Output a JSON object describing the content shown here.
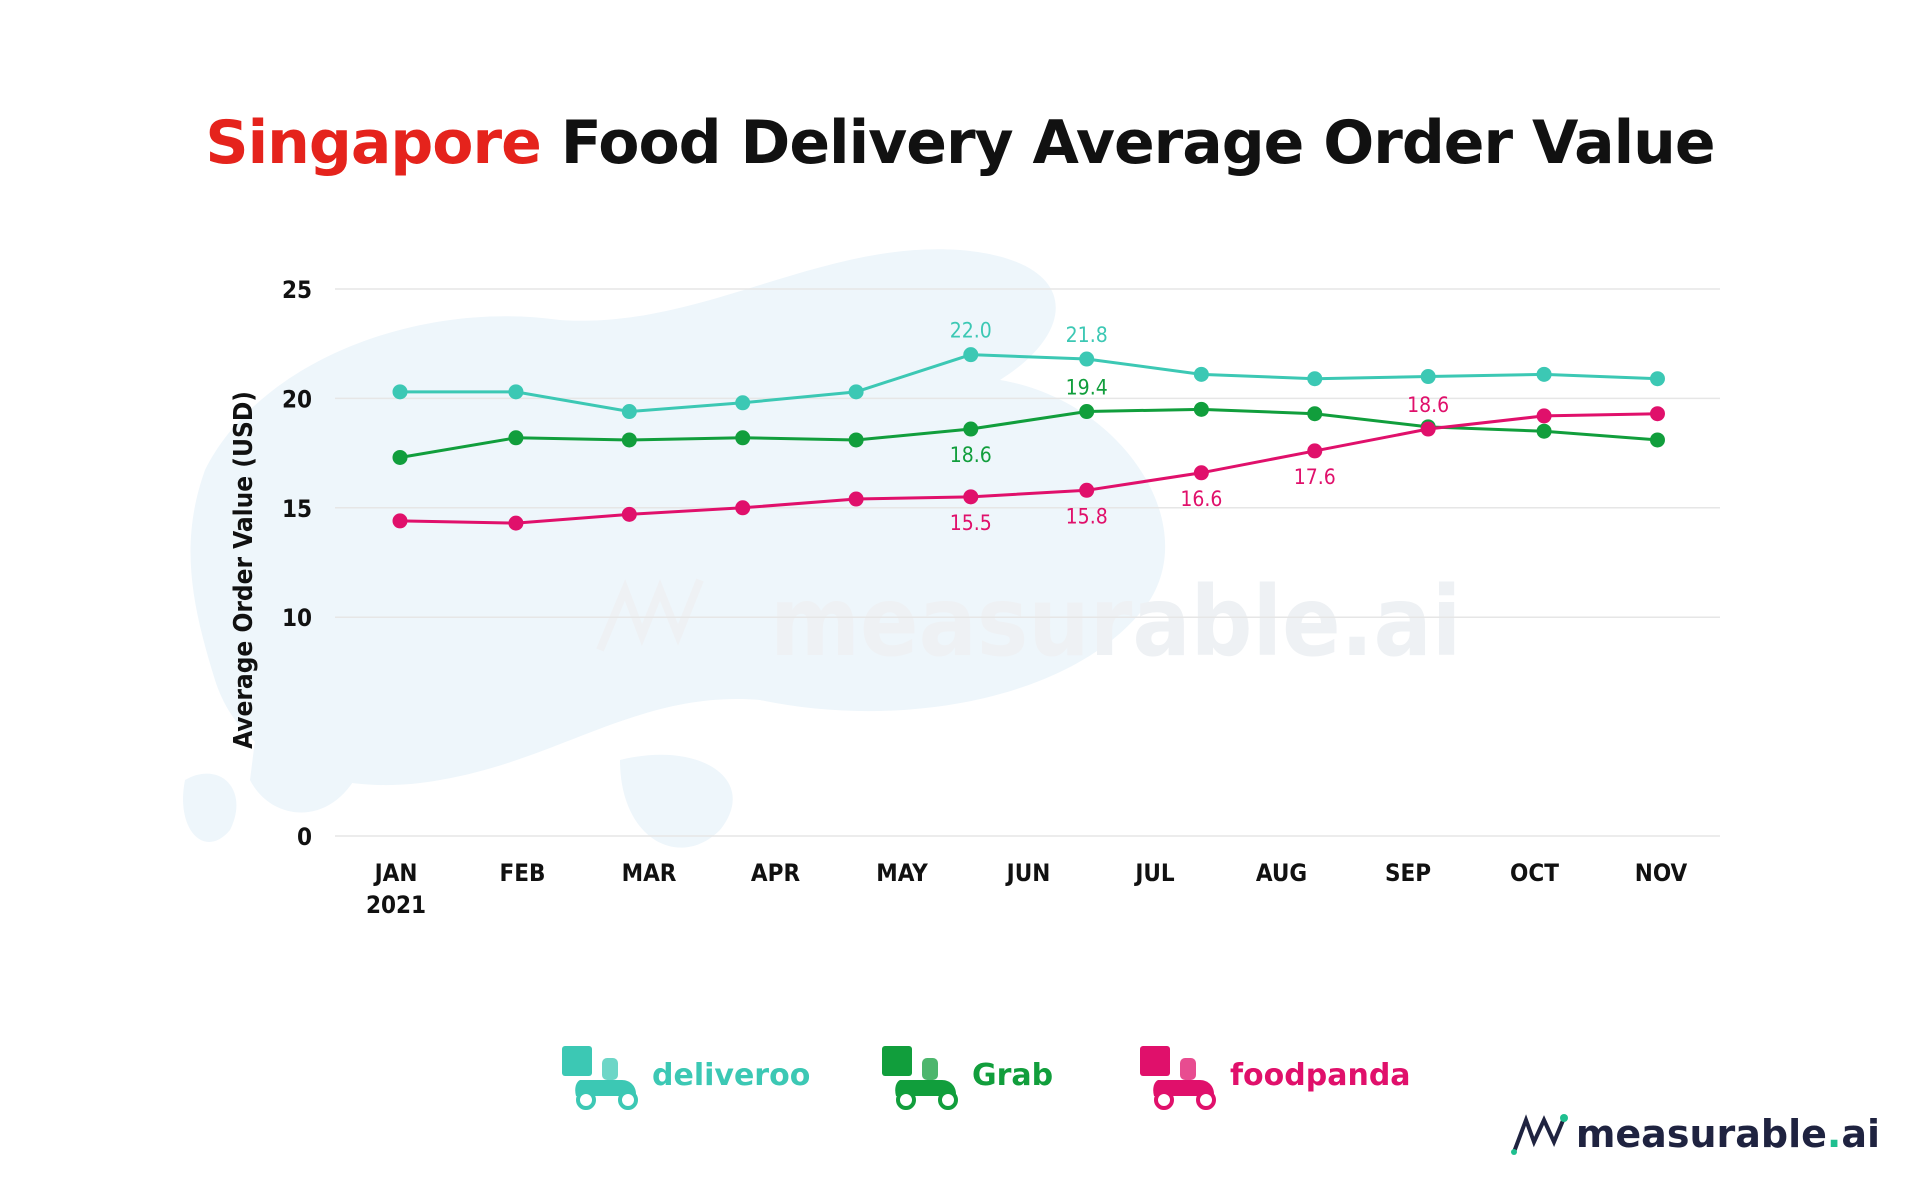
{
  "title": {
    "highlight": "Singapore",
    "rest": "Food Delivery Average Order Value"
  },
  "watermark": "measurable.ai",
  "brand": {
    "name": "measurable",
    "dot": ".",
    "suffix": "ai"
  },
  "colors": {
    "deliveroo": "#3cc8b4",
    "grab": "#119e3c",
    "foodpanda": "#e0106b",
    "title_highlight": "#e5231c",
    "grid": "#e6e6e6",
    "map": "#eef6fb"
  },
  "chart_data": {
    "type": "line",
    "ylabel": "Average Order Value (USD)",
    "ylim": [
      0,
      25
    ],
    "yticks": [
      0,
      10,
      15,
      20,
      25
    ],
    "categories": [
      "JAN",
      "FEB",
      "MAR",
      "APR",
      "MAY",
      "JUN",
      "JUL",
      "AUG",
      "SEP",
      "OCT",
      "NOV"
    ],
    "category_sublabels": [
      "2021",
      "",
      "",
      "",
      "",
      "",
      "",
      "",
      "",
      "",
      ""
    ],
    "grid": true,
    "legend_position": "bottom",
    "series": [
      {
        "name": "deliveroo",
        "color_key": "deliveroo",
        "x": [
          0,
          0.92,
          1.82,
          2.72,
          3.62,
          4.53,
          5.45,
          6.36,
          7.26,
          8.16,
          9.08,
          9.98
        ],
        "values": [
          20.3,
          20.3,
          19.4,
          19.8,
          20.3,
          22.0,
          21.8,
          21.1,
          20.9,
          21.0,
          21.1,
          20.9
        ],
        "labels": [
          {
            "index": 5,
            "text": "22.0",
            "position": "above"
          },
          {
            "index": 6,
            "text": "21.8",
            "position": "above"
          }
        ]
      },
      {
        "name": "Grab",
        "color_key": "grab",
        "x": [
          0,
          0.92,
          1.82,
          2.72,
          3.62,
          4.53,
          5.45,
          6.36,
          7.26,
          8.16,
          9.08,
          9.98
        ],
        "values": [
          17.3,
          18.2,
          18.1,
          18.2,
          18.1,
          18.6,
          19.4,
          19.5,
          19.3,
          18.7,
          18.5,
          18.1
        ],
        "labels": [
          {
            "index": 5,
            "text": "18.6",
            "position": "below"
          },
          {
            "index": 6,
            "text": "19.4",
            "position": "above"
          }
        ]
      },
      {
        "name": "foodpanda",
        "color_key": "foodpanda",
        "x": [
          0,
          0.92,
          1.82,
          2.72,
          3.62,
          4.53,
          5.45,
          6.36,
          7.26,
          8.16,
          9.08,
          9.98
        ],
        "values": [
          14.4,
          14.3,
          14.7,
          15.0,
          15.4,
          15.5,
          15.8,
          16.6,
          17.6,
          18.6,
          19.2,
          19.3
        ],
        "labels": [
          {
            "index": 5,
            "text": "15.5",
            "position": "below"
          },
          {
            "index": 6,
            "text": "15.8",
            "position": "below"
          },
          {
            "index": 7,
            "text": "16.6",
            "position": "below"
          },
          {
            "index": 8,
            "text": "17.6",
            "position": "below"
          },
          {
            "index": 9,
            "text": "18.6",
            "position": "above"
          }
        ]
      }
    ]
  },
  "legend": [
    {
      "name": "deliveroo",
      "color_key": "deliveroo",
      "icon": "deliveroo-scooter-icon"
    },
    {
      "name": "Grab",
      "color_key": "grab",
      "icon": "grab-scooter-icon"
    },
    {
      "name": "foodpanda",
      "color_key": "foodpanda",
      "icon": "foodpanda-scooter-icon"
    }
  ]
}
